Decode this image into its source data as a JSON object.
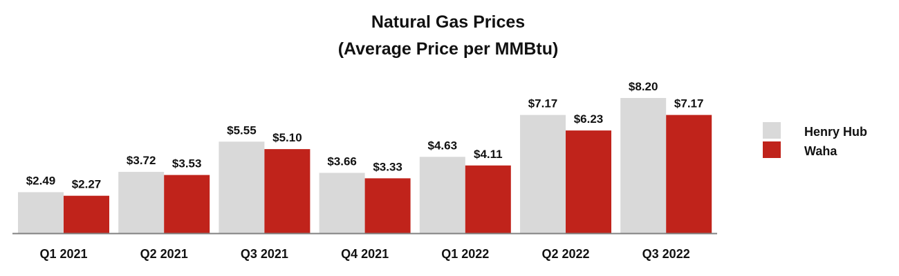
{
  "chart_data": {
    "type": "bar",
    "title": "Natural Gas Prices",
    "subtitle": "(Average Price per MMBtu)",
    "xlabel": "",
    "ylabel": "",
    "ylim": [
      0,
      8.2
    ],
    "grid": false,
    "legend_position": "right",
    "categories": [
      "Q1 2021",
      "Q2 2021",
      "Q3 2021",
      "Q4 2021",
      "Q1 2022",
      "Q2 2022",
      "Q3 2022"
    ],
    "series": [
      {
        "name": "Henry Hub",
        "color": "#D9D9D9",
        "values": [
          2.49,
          3.72,
          5.55,
          3.66,
          4.63,
          7.17,
          8.2
        ],
        "labels": [
          "$2.49",
          "$3.72",
          "$5.55",
          "$3.66",
          "$4.63",
          "$7.17",
          "$8.20"
        ]
      },
      {
        "name": "Waha",
        "color": "#C0231B",
        "values": [
          2.27,
          3.53,
          5.1,
          3.33,
          4.11,
          6.23,
          7.17
        ],
        "labels": [
          "$2.27",
          "$3.53",
          "$5.10",
          "$3.33",
          "$4.11",
          "$6.23",
          "$7.17"
        ]
      }
    ]
  }
}
